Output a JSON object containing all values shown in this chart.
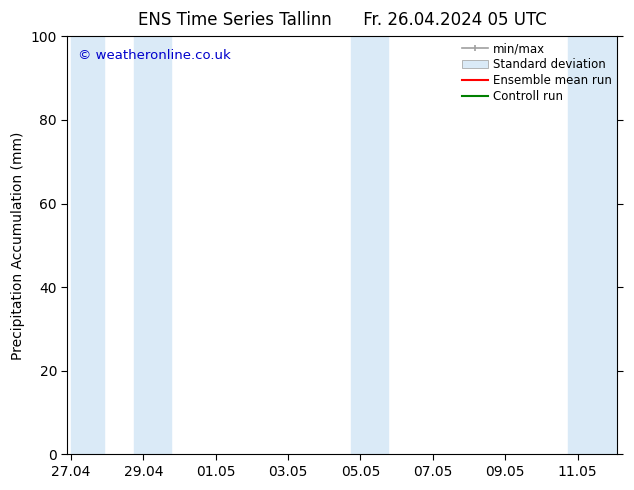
{
  "title": "ENS Time Series Tallinn      Fr. 26.04.2024 05 UTC",
  "ylabel": "Precipitation Accumulation (mm)",
  "watermark": "© weatheronline.co.uk",
  "watermark_color": "#0000cc",
  "ylim": [
    0,
    100
  ],
  "yticks": [
    0,
    20,
    40,
    60,
    80,
    100
  ],
  "x_tick_labels": [
    "27.04",
    "29.04",
    "01.05",
    "03.05",
    "05.05",
    "07.05",
    "09.05",
    "11.05"
  ],
  "x_ticks_pos": [
    0,
    2,
    4,
    6,
    8,
    10,
    12,
    14
  ],
  "xlim": [
    -0.1,
    15.1
  ],
  "bands": [
    [
      0.0,
      0.9
    ],
    [
      1.75,
      2.75
    ],
    [
      7.75,
      8.75
    ],
    [
      13.75,
      15.1
    ]
  ],
  "band_color": "#daeaf7",
  "legend_items": [
    {
      "label": "min/max",
      "color": "#a0a0a0",
      "type": "minmax"
    },
    {
      "label": "Standard deviation",
      "color": "#c8ddf0",
      "type": "box"
    },
    {
      "label": "Ensemble mean run",
      "color": "#ff0000",
      "type": "line"
    },
    {
      "label": "Controll run",
      "color": "#008000",
      "type": "line"
    }
  ],
  "background_color": "#ffffff",
  "font_size": 10,
  "title_fontsize": 12
}
